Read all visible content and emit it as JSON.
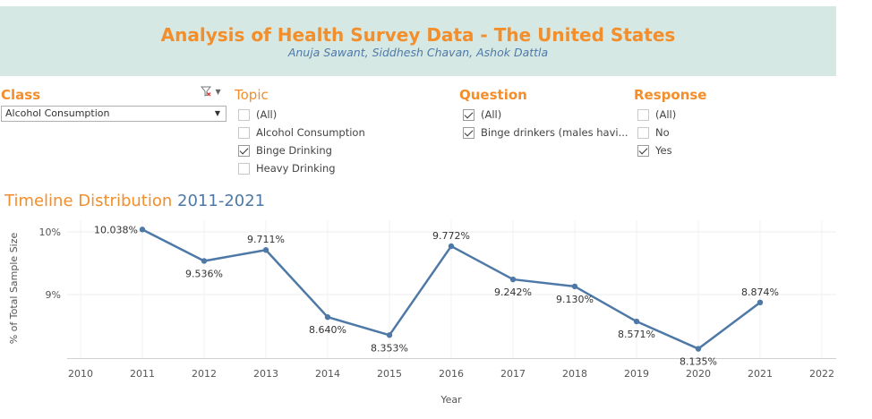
{
  "header": {
    "title": "Analysis of Health Survey Data - The United States",
    "authors": "Anuja Sawant, Siddhesh Chavan, Ashok Dattla"
  },
  "filters": {
    "class": {
      "title": "Class",
      "selected": "Alcohol Consumption",
      "clear_icon": "filter-clear-icon"
    },
    "topic": {
      "title": "Topic",
      "options": [
        {
          "label": "(All)",
          "checked": false
        },
        {
          "label": "Alcohol Consumption",
          "checked": false
        },
        {
          "label": "Binge Drinking",
          "checked": true
        },
        {
          "label": "Heavy Drinking",
          "checked": false
        }
      ]
    },
    "question": {
      "title": "Question",
      "options": [
        {
          "label": "(All)",
          "checked": true
        },
        {
          "label": "Binge drinkers (males havi...",
          "checked": true
        }
      ]
    },
    "response": {
      "title": "Response",
      "options": [
        {
          "label": "(All)",
          "checked": false
        },
        {
          "label": "No",
          "checked": false
        },
        {
          "label": "Yes",
          "checked": true
        }
      ]
    }
  },
  "section": {
    "title_part1": "Timeline Distribution",
    "title_part2": "2011-2021"
  },
  "chart_data": {
    "type": "line",
    "title": "",
    "xlabel": "Year",
    "ylabel": "% of Total Sample Size",
    "xlim": [
      2010,
      2022
    ],
    "x_ticks": [
      "2010",
      "2011",
      "2012",
      "2013",
      "2014",
      "2015",
      "2016",
      "2017",
      "2018",
      "2019",
      "2020",
      "2021",
      "2022"
    ],
    "y_ticks": [
      "9%",
      "10%"
    ],
    "ylim": [
      8.0,
      10.1
    ],
    "grid": true,
    "color": "#4e79a7",
    "series": [
      {
        "x": [
          2011,
          2012,
          2013,
          2014,
          2015,
          2016,
          2017,
          2018,
          2019,
          2020,
          2021
        ],
        "values": [
          10.038,
          9.536,
          9.711,
          8.64,
          8.353,
          9.772,
          9.242,
          9.13,
          8.571,
          8.135,
          8.874
        ],
        "labels": [
          "10.038%",
          "9.536%",
          "9.711%",
          "8.640%",
          "8.353%",
          "9.772%",
          "9.242%",
          "9.130%",
          "8.571%",
          "8.135%",
          "8.874%"
        ]
      }
    ]
  }
}
